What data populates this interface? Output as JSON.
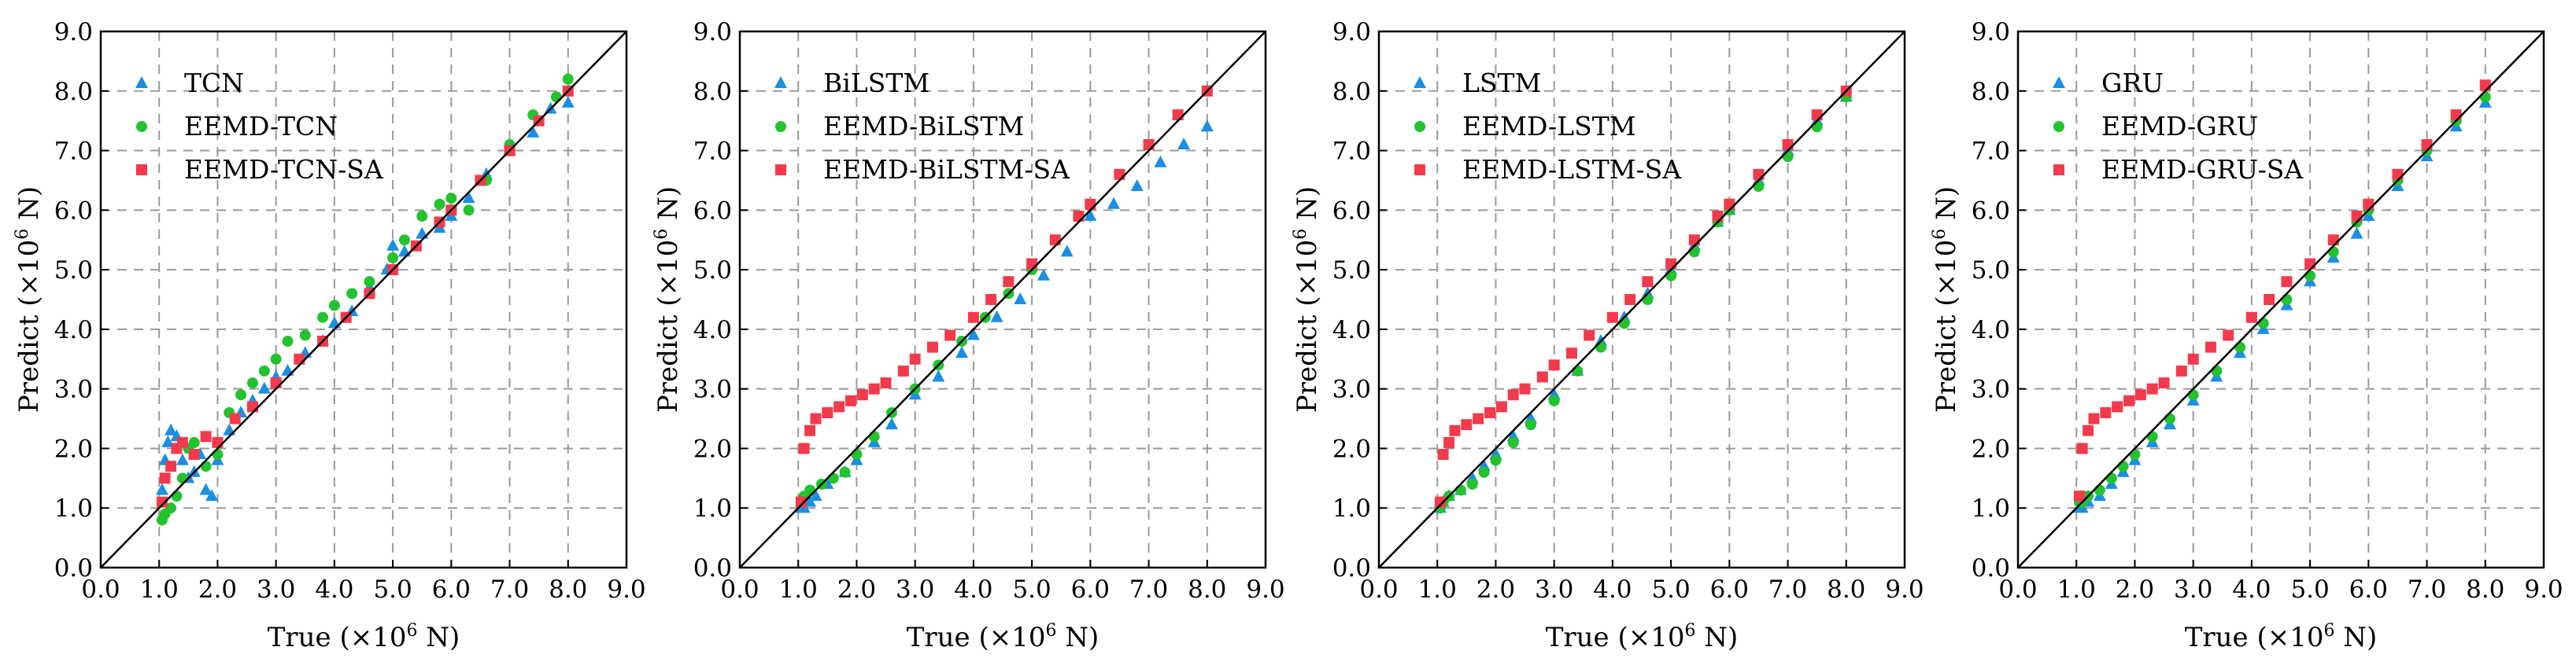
{
  "figure": {
    "x_label": "True (×10",
    "x_label_exp": "6",
    "x_label_unit": " N)",
    "y_label": "Predict (×10",
    "y_label_exp": "6",
    "y_label_unit": " N)"
  },
  "chart_data": [
    {
      "type": "scatter",
      "xlim": [
        0,
        9
      ],
      "ylim": [
        0,
        9
      ],
      "xticks": [
        "0.0",
        "1.0",
        "2.0",
        "3.0",
        "4.0",
        "5.0",
        "6.0",
        "7.0",
        "8.0",
        "9.0"
      ],
      "yticks": [
        "0.0",
        "1.0",
        "2.0",
        "3.0",
        "4.0",
        "5.0",
        "6.0",
        "7.0",
        "8.0",
        "9.0"
      ],
      "grid": true,
      "legend_position": "top-left",
      "reference_line": {
        "from": [
          0,
          0
        ],
        "to": [
          9,
          9
        ]
      },
      "series": [
        {
          "name": "TCN",
          "marker": "triangle",
          "color": "#1a8fe3",
          "x": [
            1.05,
            1.1,
            1.15,
            1.2,
            1.3,
            1.4,
            1.5,
            1.6,
            1.7,
            1.8,
            1.9,
            2.0,
            2.2,
            2.4,
            2.6,
            2.8,
            3.0,
            3.2,
            3.5,
            3.8,
            4.0,
            4.3,
            4.6,
            4.9,
            5.0,
            5.2,
            5.5,
            5.8,
            6.0,
            6.3,
            6.6,
            7.0,
            7.4,
            7.7,
            8.0
          ],
          "y": [
            1.3,
            1.8,
            2.1,
            2.3,
            2.2,
            1.8,
            1.5,
            1.6,
            1.9,
            1.3,
            1.2,
            1.8,
            2.3,
            2.6,
            2.8,
            3.0,
            3.2,
            3.3,
            3.6,
            3.8,
            4.1,
            4.3,
            4.7,
            5.0,
            5.4,
            5.3,
            5.6,
            5.7,
            5.9,
            6.2,
            6.6,
            7.0,
            7.3,
            7.7,
            7.8
          ]
        },
        {
          "name": "EEMD-TCN",
          "marker": "circle",
          "color": "#22c32e",
          "x": [
            1.05,
            1.1,
            1.2,
            1.3,
            1.4,
            1.5,
            1.6,
            1.8,
            2.0,
            2.2,
            2.4,
            2.6,
            2.8,
            3.0,
            3.2,
            3.5,
            3.8,
            4.0,
            4.3,
            4.6,
            5.0,
            5.2,
            5.5,
            5.8,
            6.0,
            6.3,
            6.6,
            7.0,
            7.4,
            7.8,
            8.0
          ],
          "y": [
            0.8,
            0.9,
            1.0,
            1.2,
            1.5,
            2.0,
            2.1,
            1.7,
            1.9,
            2.6,
            2.9,
            3.1,
            3.3,
            3.5,
            3.8,
            3.9,
            4.2,
            4.4,
            4.6,
            4.8,
            5.2,
            5.5,
            5.9,
            6.1,
            6.2,
            6.0,
            6.5,
            7.1,
            7.6,
            7.9,
            8.2
          ]
        },
        {
          "name": "EEMD-TCN-SA",
          "marker": "square",
          "color": "#f33a4d",
          "x": [
            1.05,
            1.1,
            1.2,
            1.3,
            1.4,
            1.6,
            1.8,
            2.0,
            2.3,
            2.6,
            3.0,
            3.4,
            3.8,
            4.2,
            4.6,
            5.0,
            5.4,
            5.8,
            6.0,
            6.5,
            7.0,
            7.5,
            8.0
          ],
          "y": [
            1.1,
            1.5,
            1.7,
            2.0,
            2.1,
            1.9,
            2.2,
            2.1,
            2.5,
            2.7,
            3.1,
            3.5,
            3.8,
            4.2,
            4.6,
            5.0,
            5.4,
            5.8,
            6.0,
            6.5,
            7.0,
            7.5,
            8.0
          ]
        }
      ]
    },
    {
      "type": "scatter",
      "xlim": [
        0,
        9
      ],
      "ylim": [
        0,
        9
      ],
      "xticks": [
        "0.0",
        "1.0",
        "2.0",
        "3.0",
        "4.0",
        "5.0",
        "6.0",
        "7.0",
        "8.0",
        "9.0"
      ],
      "yticks": [
        "0.0",
        "1.0",
        "2.0",
        "3.0",
        "4.0",
        "5.0",
        "6.0",
        "7.0",
        "8.0",
        "9.0"
      ],
      "grid": true,
      "legend_position": "top-left",
      "reference_line": {
        "from": [
          0,
          0
        ],
        "to": [
          9,
          9
        ]
      },
      "series": [
        {
          "name": "BiLSTM",
          "marker": "triangle",
          "color": "#1a8fe3",
          "x": [
            1.05,
            1.1,
            1.2,
            1.3,
            1.5,
            1.8,
            2.0,
            2.3,
            2.6,
            3.0,
            3.4,
            3.8,
            4.0,
            4.4,
            4.8,
            5.2,
            5.6,
            6.0,
            6.4,
            6.8,
            7.2,
            7.6,
            8.0
          ],
          "y": [
            1.0,
            1.0,
            1.1,
            1.2,
            1.4,
            1.6,
            1.8,
            2.1,
            2.4,
            2.9,
            3.2,
            3.6,
            3.9,
            4.2,
            4.5,
            4.9,
            5.3,
            5.9,
            6.1,
            6.4,
            6.8,
            7.1,
            7.4
          ]
        },
        {
          "name": "EEMD-BiLSTM",
          "marker": "circle",
          "color": "#22c32e",
          "x": [
            1.05,
            1.1,
            1.2,
            1.4,
            1.6,
            1.8,
            2.0,
            2.3,
            2.6,
            3.0,
            3.4,
            3.8,
            4.2,
            4.6,
            5.0,
            5.4,
            5.8,
            6.0,
            6.5,
            7.0,
            7.5,
            8.0
          ],
          "y": [
            1.1,
            1.2,
            1.3,
            1.4,
            1.5,
            1.6,
            1.9,
            2.2,
            2.6,
            3.0,
            3.4,
            3.8,
            4.2,
            4.6,
            5.0,
            5.5,
            5.9,
            6.1,
            6.6,
            7.1,
            7.6,
            8.0
          ]
        },
        {
          "name": "EEMD-BiLSTM-SA",
          "marker": "square",
          "color": "#f33a4d",
          "x": [
            1.05,
            1.1,
            1.2,
            1.3,
            1.5,
            1.7,
            1.9,
            2.1,
            2.3,
            2.5,
            2.8,
            3.0,
            3.3,
            3.6,
            4.0,
            4.3,
            4.6,
            5.0,
            5.4,
            5.8,
            6.0,
            6.5,
            7.0,
            7.5,
            8.0
          ],
          "y": [
            1.1,
            2.0,
            2.3,
            2.5,
            2.6,
            2.7,
            2.8,
            2.9,
            3.0,
            3.1,
            3.3,
            3.5,
            3.7,
            3.9,
            4.2,
            4.5,
            4.8,
            5.1,
            5.5,
            5.9,
            6.1,
            6.6,
            7.1,
            7.6,
            8.0
          ]
        }
      ]
    },
    {
      "type": "scatter",
      "xlim": [
        0,
        9
      ],
      "ylim": [
        0,
        9
      ],
      "xticks": [
        "0.0",
        "1.0",
        "2.0",
        "3.0",
        "4.0",
        "5.0",
        "6.0",
        "7.0",
        "8.0",
        "9.0"
      ],
      "yticks": [
        "0.0",
        "1.0",
        "2.0",
        "3.0",
        "4.0",
        "5.0",
        "6.0",
        "7.0",
        "8.0",
        "9.0"
      ],
      "grid": true,
      "legend_position": "top-left",
      "reference_line": {
        "from": [
          0,
          0
        ],
        "to": [
          9,
          9
        ]
      },
      "series": [
        {
          "name": "LSTM",
          "marker": "triangle",
          "color": "#1a8fe3",
          "x": [
            1.05,
            1.1,
            1.2,
            1.4,
            1.6,
            1.8,
            2.0,
            2.3,
            2.6,
            3.0,
            3.4,
            3.8,
            4.2,
            4.6,
            5.0,
            5.4,
            5.8,
            6.0,
            6.5,
            7.0,
            7.5,
            8.0
          ],
          "y": [
            1.0,
            1.1,
            1.2,
            1.3,
            1.5,
            1.7,
            1.9,
            2.2,
            2.5,
            2.9,
            3.3,
            3.8,
            4.2,
            4.6,
            5.0,
            5.4,
            5.8,
            6.0,
            6.5,
            7.0,
            7.5,
            7.9
          ]
        },
        {
          "name": "EEMD-LSTM",
          "marker": "circle",
          "color": "#22c32e",
          "x": [
            1.05,
            1.1,
            1.2,
            1.4,
            1.6,
            1.8,
            2.0,
            2.3,
            2.6,
            3.0,
            3.4,
            3.8,
            4.2,
            4.6,
            5.0,
            5.4,
            5.8,
            6.0,
            6.5,
            7.0,
            7.5,
            8.0
          ],
          "y": [
            1.0,
            1.1,
            1.2,
            1.3,
            1.4,
            1.6,
            1.8,
            2.1,
            2.4,
            2.8,
            3.3,
            3.7,
            4.1,
            4.5,
            4.9,
            5.3,
            5.8,
            6.0,
            6.4,
            6.9,
            7.4,
            7.9
          ]
        },
        {
          "name": "EEMD-LSTM-SA",
          "marker": "square",
          "color": "#f33a4d",
          "x": [
            1.05,
            1.1,
            1.2,
            1.3,
            1.5,
            1.7,
            1.9,
            2.1,
            2.3,
            2.5,
            2.8,
            3.0,
            3.3,
            3.6,
            4.0,
            4.3,
            4.6,
            5.0,
            5.4,
            5.8,
            6.0,
            6.5,
            7.0,
            7.5,
            8.0
          ],
          "y": [
            1.1,
            1.9,
            2.1,
            2.3,
            2.4,
            2.5,
            2.6,
            2.7,
            2.9,
            3.0,
            3.2,
            3.4,
            3.6,
            3.9,
            4.2,
            4.5,
            4.8,
            5.1,
            5.5,
            5.9,
            6.1,
            6.6,
            7.1,
            7.6,
            8.0
          ]
        }
      ]
    },
    {
      "type": "scatter",
      "xlim": [
        0,
        9
      ],
      "ylim": [
        0,
        9
      ],
      "xticks": [
        "0.0",
        "1.0",
        "2.0",
        "3.0",
        "4.0",
        "5.0",
        "6.0",
        "7.0",
        "8.0",
        "9.0"
      ],
      "yticks": [
        "0.0",
        "1.0",
        "2.0",
        "3.0",
        "4.0",
        "5.0",
        "6.0",
        "7.0",
        "8.0",
        "9.0"
      ],
      "grid": true,
      "legend_position": "top-left",
      "reference_line": {
        "from": [
          0,
          0
        ],
        "to": [
          9,
          9
        ]
      },
      "series": [
        {
          "name": "GRU",
          "marker": "triangle",
          "color": "#1a8fe3",
          "x": [
            1.05,
            1.1,
            1.2,
            1.4,
            1.6,
            1.8,
            2.0,
            2.3,
            2.6,
            3.0,
            3.4,
            3.8,
            4.2,
            4.6,
            5.0,
            5.4,
            5.8,
            6.0,
            6.5,
            7.0,
            7.5,
            8.0
          ],
          "y": [
            1.0,
            1.0,
            1.1,
            1.2,
            1.4,
            1.6,
            1.8,
            2.1,
            2.4,
            2.8,
            3.2,
            3.6,
            4.0,
            4.4,
            4.8,
            5.2,
            5.6,
            5.9,
            6.4,
            6.9,
            7.4,
            7.8
          ]
        },
        {
          "name": "EEMD-GRU",
          "marker": "circle",
          "color": "#22c32e",
          "x": [
            1.05,
            1.1,
            1.2,
            1.4,
            1.6,
            1.8,
            2.0,
            2.3,
            2.6,
            3.0,
            3.4,
            3.8,
            4.2,
            4.6,
            5.0,
            5.4,
            5.8,
            6.0,
            6.5,
            7.0,
            7.5,
            8.0
          ],
          "y": [
            1.1,
            1.1,
            1.2,
            1.3,
            1.5,
            1.7,
            1.9,
            2.2,
            2.5,
            2.9,
            3.3,
            3.7,
            4.1,
            4.5,
            4.9,
            5.3,
            5.8,
            6.0,
            6.5,
            7.0,
            7.5,
            7.9
          ]
        },
        {
          "name": "EEMD-GRU-SA",
          "marker": "square",
          "color": "#f33a4d",
          "x": [
            1.05,
            1.1,
            1.2,
            1.3,
            1.5,
            1.7,
            1.9,
            2.1,
            2.3,
            2.5,
            2.8,
            3.0,
            3.3,
            3.6,
            4.0,
            4.3,
            4.6,
            5.0,
            5.4,
            5.8,
            6.0,
            6.5,
            7.0,
            7.5,
            8.0
          ],
          "y": [
            1.2,
            2.0,
            2.3,
            2.5,
            2.6,
            2.7,
            2.8,
            2.9,
            3.0,
            3.1,
            3.3,
            3.5,
            3.7,
            3.9,
            4.2,
            4.5,
            4.8,
            5.1,
            5.5,
            5.9,
            6.1,
            6.6,
            7.1,
            7.6,
            8.1
          ]
        }
      ]
    }
  ]
}
